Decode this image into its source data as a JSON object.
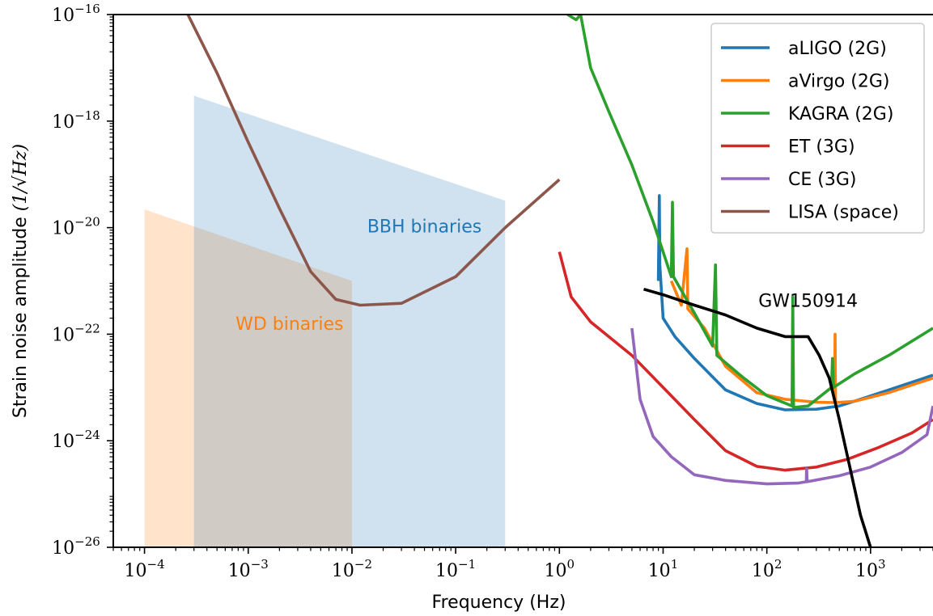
{
  "chart_data": {
    "type": "line",
    "xscale": "log",
    "yscale": "log",
    "xlim": [
      5e-05,
      4000
    ],
    "ylim": [
      1e-26,
      1e-16
    ],
    "xlabel": "Frequency (Hz)",
    "ylabel": "Strain noise amplitude",
    "ylabel_unit": "(1/√Hz)",
    "x_tick_exponents": [
      "-4",
      "-3",
      "-2",
      "-1",
      "0",
      "1",
      "2",
      "3"
    ],
    "y_tick_exponents": [
      "-26",
      "-24",
      "-22",
      "-20",
      "-18",
      "-16"
    ],
    "tick_base": "10",
    "grid": false,
    "legend_position": "top-right",
    "colors": {
      "blue": "#1f77b4",
      "orange": "#ff7f0e",
      "green": "#2ca02c",
      "red": "#d62728",
      "purple": "#9467bd",
      "brown": "#8c564b",
      "black": "#000000"
    },
    "regions": [
      {
        "label": "WD binaries",
        "color": "#ff7f0e",
        "opacity": 0.22,
        "points": [
          [
            0.0001,
            2.2e-20
          ],
          [
            0.01,
            1e-21
          ],
          [
            0.01,
            1e-26
          ],
          [
            0.0001,
            1e-26
          ]
        ]
      },
      {
        "label": "BBH binaries",
        "color": "#1f77b4",
        "opacity": 0.21,
        "points": [
          [
            0.0003,
            3e-18
          ],
          [
            0.3,
            3.2e-20
          ],
          [
            0.3,
            1e-26
          ],
          [
            0.0003,
            1e-26
          ]
        ]
      }
    ],
    "region_labels": [
      {
        "text": "WD binaries",
        "x": 0.0025,
        "y": 1.5e-22,
        "color": "#ff7f0e"
      },
      {
        "text": "BBH binaries",
        "x": 0.05,
        "y": 1e-20,
        "color": "#1f77b4"
      }
    ],
    "annotations": [
      {
        "text": "GW150914",
        "x": 250,
        "y": 4e-22,
        "color": "#000000"
      }
    ],
    "series": [
      {
        "name": "aLIGO (2G)",
        "color": "#1f77b4",
        "points": [
          [
            9,
            1e-21
          ],
          [
            9.2,
            4e-20
          ],
          [
            9.3,
            2e-21
          ],
          [
            10,
            2e-22
          ],
          [
            13,
            9e-23
          ],
          [
            20,
            3.5e-23
          ],
          [
            40,
            9e-24
          ],
          [
            80,
            5e-24
          ],
          [
            150,
            3.8e-24
          ],
          [
            300,
            3.9e-24
          ],
          [
            500,
            4.5e-24
          ],
          [
            800,
            6e-24
          ],
          [
            1500,
            9e-24
          ],
          [
            4000,
            1.7e-23
          ]
        ]
      },
      {
        "name": "aVirgo (2G)",
        "color": "#ff7f0e",
        "points": [
          [
            12,
            1e-21
          ],
          [
            15,
            3.5e-22
          ],
          [
            17,
            4e-21
          ],
          [
            17.3,
            3e-22
          ],
          [
            25,
            1.3e-22
          ],
          [
            40,
            2.5e-23
          ],
          [
            80,
            8e-24
          ],
          [
            150,
            6e-24
          ],
          [
            300,
            5.3e-24
          ],
          [
            450,
            5.2e-24
          ],
          [
            455,
            1e-22
          ],
          [
            460,
            5.2e-24
          ],
          [
            700,
            5.5e-24
          ],
          [
            1500,
            8e-24
          ],
          [
            4000,
            1.5e-23
          ]
        ]
      },
      {
        "name": "KAGRA (2G)",
        "color": "#2ca02c",
        "points": [
          [
            1.2,
            1e-16
          ],
          [
            1.45,
            8e-17
          ],
          [
            1.6,
            1e-16
          ],
          [
            2,
            1e-17
          ],
          [
            3,
            1.5e-18
          ],
          [
            5,
            1.5e-19
          ],
          [
            8,
            1.3e-20
          ],
          [
            12,
            1.2e-21
          ],
          [
            12.3,
            3e-20
          ],
          [
            12.6,
            1.2e-21
          ],
          [
            20,
            2.5e-22
          ],
          [
            30,
            6e-23
          ],
          [
            32,
            2e-21
          ],
          [
            33,
            4e-23
          ],
          [
            60,
            1.5e-23
          ],
          [
            100,
            7e-24
          ],
          [
            175,
            4.5e-24
          ],
          [
            178,
            5e-22
          ],
          [
            181,
            4.2e-24
          ],
          [
            250,
            4.5e-24
          ],
          [
            420,
            1e-23
          ],
          [
            430,
            3.5e-23
          ],
          [
            440,
            1e-23
          ],
          [
            700,
            1.8e-23
          ],
          [
            1500,
            4e-23
          ],
          [
            4000,
            1.3e-22
          ]
        ]
      },
      {
        "name": "ET (3G)",
        "color": "#d62728",
        "points": [
          [
            1,
            3.5e-21
          ],
          [
            1.3,
            5e-22
          ],
          [
            2,
            1.7e-22
          ],
          [
            5,
            4e-23
          ],
          [
            10,
            1e-23
          ],
          [
            20,
            2.5e-24
          ],
          [
            40,
            6.5e-25
          ],
          [
            80,
            3.3e-25
          ],
          [
            150,
            2.8e-25
          ],
          [
            300,
            3.2e-25
          ],
          [
            600,
            4.5e-25
          ],
          [
            1200,
            7.5e-25
          ],
          [
            2500,
            1.4e-24
          ],
          [
            4000,
            2.5e-24
          ]
        ]
      },
      {
        "name": "CE (3G)",
        "color": "#9467bd",
        "points": [
          [
            5,
            1.3e-22
          ],
          [
            6,
            6e-24
          ],
          [
            8,
            1.2e-24
          ],
          [
            12,
            5e-25
          ],
          [
            20,
            2.3e-25
          ],
          [
            40,
            1.8e-25
          ],
          [
            100,
            1.55e-25
          ],
          [
            200,
            1.6e-25
          ],
          [
            240,
            1.7e-25
          ],
          [
            242,
            3e-25
          ],
          [
            245,
            1.7e-25
          ],
          [
            500,
            2.2e-25
          ],
          [
            1000,
            3.2e-25
          ],
          [
            2000,
            6e-25
          ],
          [
            3500,
            1.3e-24
          ],
          [
            4000,
            4.5e-24
          ]
        ]
      },
      {
        "name": "LISA (space)",
        "color": "#8c564b",
        "points": [
          [
            0.00025,
            1.2e-16
          ],
          [
            0.0005,
            8e-18
          ],
          [
            0.001,
            4e-19
          ],
          [
            0.002,
            2.3e-20
          ],
          [
            0.004,
            1.5e-21
          ],
          [
            0.007,
            4.5e-22
          ],
          [
            0.012,
            3.5e-22
          ],
          [
            0.03,
            3.8e-22
          ],
          [
            0.1,
            1.2e-21
          ],
          [
            0.3,
            1e-20
          ],
          [
            1,
            8e-20
          ]
        ]
      },
      {
        "name": "GW150914",
        "color": "#000000",
        "in_legend": false,
        "points": [
          [
            6.5,
            7e-22
          ],
          [
            10,
            5.5e-22
          ],
          [
            20,
            3.5e-22
          ],
          [
            40,
            2.3e-22
          ],
          [
            80,
            1.3e-22
          ],
          [
            150,
            9e-23
          ],
          [
            250,
            9e-23
          ],
          [
            320,
            4e-23
          ],
          [
            400,
            1.5e-23
          ],
          [
            500,
            2.5e-24
          ],
          [
            600,
            5e-25
          ],
          [
            800,
            4e-26
          ],
          [
            1000,
            1e-26
          ]
        ]
      }
    ]
  }
}
